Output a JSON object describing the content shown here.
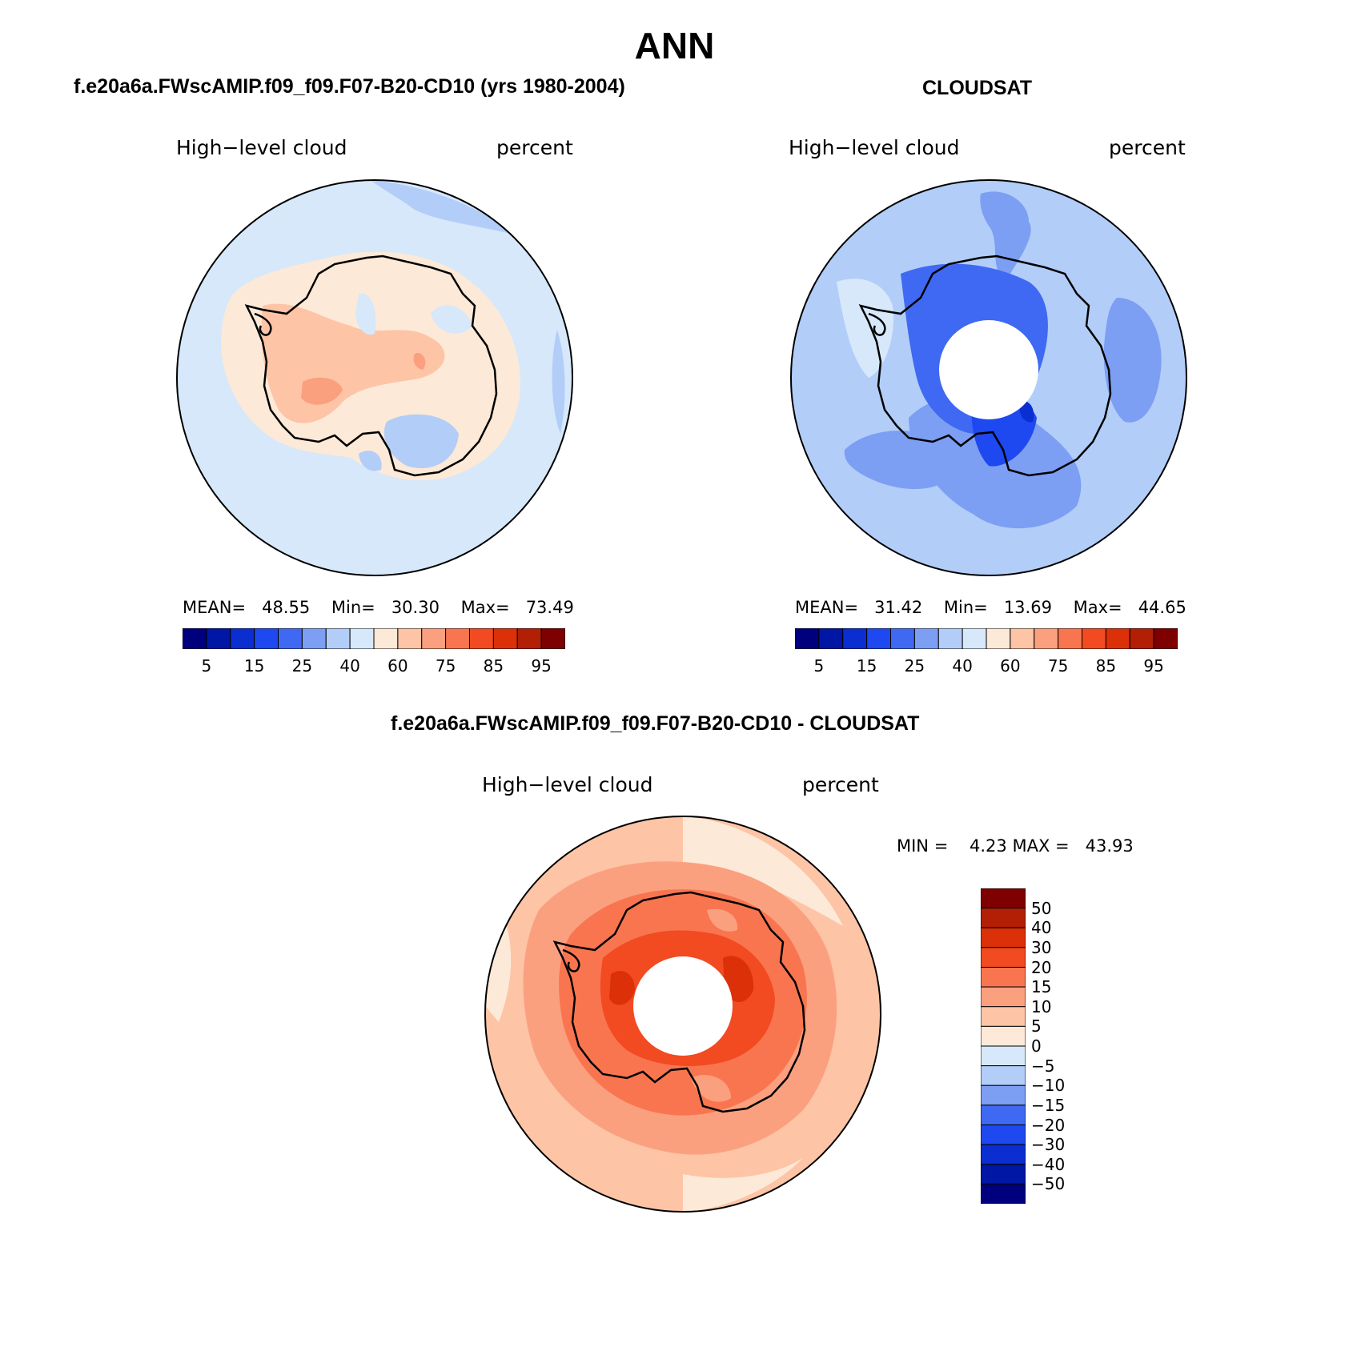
{
  "header": {
    "main_title": "ANN"
  },
  "panels": [
    {
      "case_title": "f.e20a6a.FWscAMIP.f09_f09.F07-B20-CD10 (yrs 1980-2004)",
      "variable": "High−level cloud",
      "units": "percent",
      "mean_label": "MEAN=",
      "mean": "48.55",
      "min_label": "Min=",
      "min": "30.30",
      "max_label": "Max=",
      "max": "73.49"
    },
    {
      "case_title": "CLOUDSAT",
      "variable": "High−level cloud",
      "units": "percent",
      "mean_label": "MEAN=",
      "mean": "31.42",
      "min_label": "Min=",
      "min": "13.69",
      "max_label": "Max=",
      "max": "44.65"
    }
  ],
  "diff_panel": {
    "case_title": "f.e20a6a.FWscAMIP.f09_f09.F07-B20-CD10 - CLOUDSAT",
    "variable": "High−level cloud",
    "units": "percent",
    "min_label": "MIN =",
    "min": "4.23",
    "max_label": "MAX =",
    "max": "43.93"
  },
  "chart_data": [
    {
      "type": "heatmap",
      "title": "f.e20a6a.FWscAMIP.f09_f09.F07-B20-CD10 (yrs 1980-2004)",
      "projection": "south polar stereographic",
      "variable": "High-level cloud",
      "units": "percent",
      "mean": 48.55,
      "min": 30.3,
      "max": 73.49,
      "colorbar_ticks": [
        "5",
        "15",
        "25",
        "40",
        "60",
        "75",
        "85",
        "95"
      ],
      "colorbar_levels": [
        5,
        10,
        15,
        20,
        25,
        30,
        40,
        50,
        60,
        70,
        75,
        80,
        85,
        90,
        95
      ],
      "colorbar_colors": [
        "#00007f",
        "#0016a5",
        "#0a2ed0",
        "#1e48f0",
        "#3f69f2",
        "#7c9ef3",
        "#b2cdf8",
        "#d6e8fa",
        "#fde9d8",
        "#fdc4a6",
        "#fba07f",
        "#f97550",
        "#f24a21",
        "#db3008",
        "#b21f05",
        "#7f0000"
      ]
    },
    {
      "type": "heatmap",
      "title": "CLOUDSAT",
      "projection": "south polar stereographic",
      "variable": "High-level cloud",
      "units": "percent",
      "mean": 31.42,
      "min": 13.69,
      "max": 44.65,
      "colorbar_ticks": [
        "5",
        "15",
        "25",
        "40",
        "60",
        "75",
        "85",
        "95"
      ],
      "colorbar_levels": [
        5,
        10,
        15,
        20,
        25,
        30,
        40,
        50,
        60,
        70,
        75,
        80,
        85,
        90,
        95
      ],
      "colorbar_colors": [
        "#00007f",
        "#0016a5",
        "#0a2ed0",
        "#1e48f0",
        "#3f69f2",
        "#7c9ef3",
        "#b2cdf8",
        "#d6e8fa",
        "#fde9d8",
        "#fdc4a6",
        "#fba07f",
        "#f97550",
        "#f24a21",
        "#db3008",
        "#b21f05",
        "#7f0000"
      ]
    },
    {
      "type": "heatmap",
      "title": "f.e20a6a.FWscAMIP.f09_f09.F07-B20-CD10 - CLOUDSAT",
      "projection": "south polar stereographic",
      "variable": "High-level cloud",
      "units": "percent",
      "min": 4.23,
      "max": 43.93,
      "colorbar_ticks": [
        "50",
        "40",
        "30",
        "20",
        "15",
        "10",
        "5",
        "0",
        "−5",
        "−10",
        "−15",
        "−20",
        "−30",
        "−40",
        "−50"
      ],
      "colorbar_colors": [
        "#7f0000",
        "#b21f05",
        "#db3008",
        "#f24a21",
        "#f97550",
        "#fba07f",
        "#fdc4a6",
        "#fde9d8",
        "#d6e8fa",
        "#b2cdf8",
        "#7c9ef3",
        "#3f69f2",
        "#1e48f0",
        "#0a2ed0",
        "#0016a5",
        "#00007f"
      ]
    }
  ]
}
